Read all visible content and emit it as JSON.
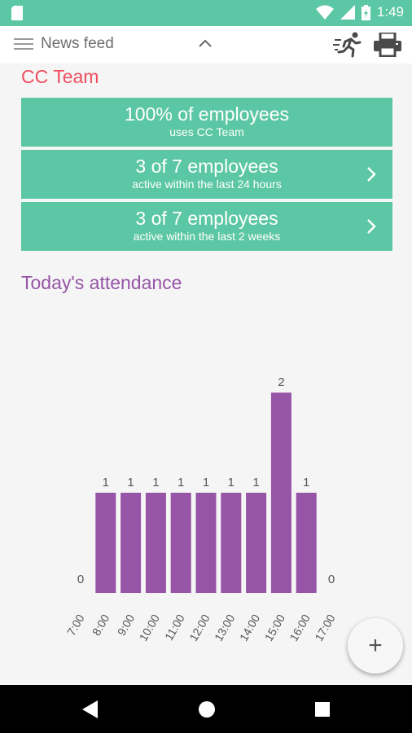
{
  "status_bar": {
    "time": "1:49",
    "icons": [
      "sd-card-icon",
      "wifi-icon",
      "signal-icon",
      "battery-icon"
    ]
  },
  "app_bar": {
    "title": "News feed",
    "icons": [
      "menu-icon",
      "chevron-up-icon",
      "running-person-icon",
      "printer-icon"
    ]
  },
  "cc_team": {
    "heading": "CC Team",
    "stats": [
      {
        "big": "100% of employees",
        "small": "uses CC Team"
      },
      {
        "big": "3 of 7 employees",
        "small": "active within the last 24 hours"
      },
      {
        "big": "3 of 7 employees",
        "small": "active within the last 2 weeks"
      }
    ]
  },
  "attendance": {
    "heading": "Today's attendance"
  },
  "chart_data": {
    "type": "bar",
    "categories": [
      "7:00",
      "8:00",
      "9:00",
      "10:00",
      "11:00",
      "12:00",
      "13:00",
      "14:00",
      "15:00",
      "16:00",
      "17:00"
    ],
    "values": [
      0,
      1,
      1,
      1,
      1,
      1,
      1,
      1,
      2,
      1,
      0
    ],
    "data_labels": [
      "0",
      "1",
      "1",
      "1",
      "1",
      "1",
      "1",
      "1",
      "2",
      "1",
      "0"
    ],
    "ylim": [
      0,
      2
    ],
    "grid": false,
    "bar_color": "#9655a6"
  },
  "fab": {
    "label": "+"
  },
  "nav_bar": {
    "icons": [
      "back-icon",
      "home-icon",
      "recents-icon"
    ]
  },
  "colors": {
    "accent": "#5cc7a4",
    "cc_team_title": "#f04e5e",
    "attendance_title": "#9655a6",
    "bars": "#9655a6"
  }
}
